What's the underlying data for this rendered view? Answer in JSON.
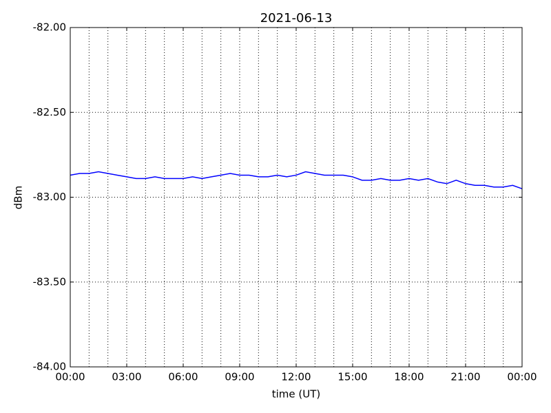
{
  "chart_data": {
    "type": "line",
    "title": "2021-06-13",
    "x_label": "time (UT)",
    "y_label": "dBm",
    "x": [
      0,
      0.5,
      1,
      1.5,
      2,
      2.5,
      3,
      3.5,
      4,
      4.5,
      5,
      5.5,
      6,
      6.5,
      7,
      7.5,
      8,
      8.5,
      9,
      9.5,
      10,
      10.5,
      11,
      11.5,
      12,
      12.5,
      13,
      13.5,
      14,
      14.5,
      15,
      15.5,
      16,
      16.5,
      17,
      17.5,
      18,
      18.5,
      19,
      19.5,
      20,
      20.5,
      21,
      21.5,
      22,
      22.5,
      23,
      23.5,
      24
    ],
    "series": [
      {
        "color": "#0000ff",
        "values": [
          -82.87,
          -82.86,
          -82.86,
          -82.85,
          -82.86,
          -82.87,
          -82.88,
          -82.89,
          -82.89,
          -82.88,
          -82.89,
          -82.89,
          -82.89,
          -82.88,
          -82.89,
          -82.88,
          -82.87,
          -82.86,
          -82.87,
          -82.87,
          -82.88,
          -82.88,
          -82.87,
          -82.88,
          -82.87,
          -82.85,
          -82.86,
          -82.87,
          -82.87,
          -82.87,
          -82.88,
          -82.9,
          -82.9,
          -82.89,
          -82.9,
          -82.9,
          -82.89,
          -82.9,
          -82.89,
          -82.91,
          -82.92,
          -82.9,
          -82.92,
          -82.93,
          -82.93,
          -82.94,
          -82.94,
          -82.93,
          -82.95
        ]
      }
    ],
    "xlim": [
      0,
      24
    ],
    "xticks": [
      {
        "value": 0,
        "label": "00:00"
      },
      {
        "value": 3,
        "label": "03:00"
      },
      {
        "value": 6,
        "label": "06:00"
      },
      {
        "value": 9,
        "label": "09:00"
      },
      {
        "value": 12,
        "label": "12:00"
      },
      {
        "value": 15,
        "label": "15:00"
      },
      {
        "value": 18,
        "label": "18:00"
      },
      {
        "value": 21,
        "label": "21:00"
      },
      {
        "value": 24,
        "label": "00:00"
      }
    ],
    "x_minor_grid": [
      1,
      2,
      4,
      5,
      7,
      8,
      10,
      11,
      13,
      14,
      16,
      17,
      19,
      20,
      22,
      23
    ],
    "ylim": [
      -84,
      -82
    ],
    "yticks": [
      {
        "value": -84,
        "label": "-84.00"
      },
      {
        "value": -83.5,
        "label": "-83.50"
      },
      {
        "value": -83,
        "label": "-83.00"
      },
      {
        "value": -82.5,
        "label": "-82.50"
      },
      {
        "value": -82,
        "label": "-82.00"
      }
    ],
    "grid": true
  }
}
